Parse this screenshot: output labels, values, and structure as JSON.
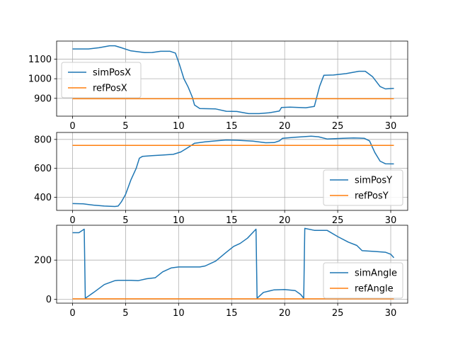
{
  "colors": {
    "sim": "#1f77b4",
    "ref": "#ff7f0e",
    "grid": "#b0b0b0",
    "axis": "#000000"
  },
  "chart_data": [
    {
      "type": "line",
      "xlim": [
        -1.5,
        31.6
      ],
      "ylim": [
        809,
        1192
      ],
      "x_ticks": [
        0,
        5,
        10,
        15,
        20,
        25,
        30
      ],
      "y_ticks": [
        900,
        1000,
        1100
      ],
      "grid": true,
      "legend_position": "upper-left",
      "series": [
        {
          "name": "simPosX",
          "color_key": "sim",
          "points": [
            [
              0,
              1152
            ],
            [
              1.5,
              1152
            ],
            [
              2.5,
              1158
            ],
            [
              3.5,
              1168
            ],
            [
              4.0,
              1168
            ],
            [
              4.6,
              1158
            ],
            [
              5.5,
              1142
            ],
            [
              6.8,
              1133
            ],
            [
              7.5,
              1134
            ],
            [
              8.3,
              1140
            ],
            [
              9.2,
              1140
            ],
            [
              9.7,
              1131
            ],
            [
              10.1,
              1070
            ],
            [
              10.5,
              1000
            ],
            [
              10.9,
              958
            ],
            [
              11.3,
              905
            ],
            [
              11.5,
              866
            ],
            [
              12.0,
              848
            ],
            [
              13.5,
              846
            ],
            [
              14.5,
              834
            ],
            [
              15.5,
              833
            ],
            [
              16.6,
              822
            ],
            [
              17.6,
              822
            ],
            [
              18.5,
              826
            ],
            [
              19.5,
              835
            ],
            [
              19.7,
              853
            ],
            [
              20.5,
              855
            ],
            [
              22.0,
              852
            ],
            [
              22.8,
              859
            ],
            [
              23.3,
              962
            ],
            [
              23.7,
              1018
            ],
            [
              24.6,
              1019
            ],
            [
              25.8,
              1026
            ],
            [
              27.0,
              1038
            ],
            [
              27.6,
              1038
            ],
            [
              28.3,
              1010
            ],
            [
              29.0,
              960
            ],
            [
              29.5,
              948
            ],
            [
              30.3,
              951
            ]
          ]
        },
        {
          "name": "refPosX",
          "color_key": "ref",
          "points": [
            [
              0,
              898
            ],
            [
              30.3,
              898
            ]
          ]
        }
      ]
    },
    {
      "type": "line",
      "xlim": [
        -1.5,
        31.6
      ],
      "ylim": [
        310,
        848
      ],
      "x_ticks": [
        0,
        5,
        10,
        15,
        20,
        25,
        30
      ],
      "y_ticks": [
        400,
        600,
        800
      ],
      "grid": true,
      "legend_position": "lower-right",
      "series": [
        {
          "name": "simPosY",
          "color_key": "sim",
          "points": [
            [
              0,
              357
            ],
            [
              1.0,
              355
            ],
            [
              2.0,
              346
            ],
            [
              3.0,
              340
            ],
            [
              4.0,
              337
            ],
            [
              4.3,
              340
            ],
            [
              4.6,
              368
            ],
            [
              5.0,
              420
            ],
            [
              5.5,
              520
            ],
            [
              6.0,
              600
            ],
            [
              6.3,
              670
            ],
            [
              6.6,
              683
            ],
            [
              7.5,
              688
            ],
            [
              8.5,
              692
            ],
            [
              9.5,
              697
            ],
            [
              10.2,
              713
            ],
            [
              10.8,
              740
            ],
            [
              11.5,
              773
            ],
            [
              12.5,
              783
            ],
            [
              13.5,
              790
            ],
            [
              14.5,
              796
            ],
            [
              15.5,
              794
            ],
            [
              17.0,
              788
            ],
            [
              18.2,
              777
            ],
            [
              19.0,
              778
            ],
            [
              19.5,
              790
            ],
            [
              19.8,
              808
            ],
            [
              21.0,
              815
            ],
            [
              22.5,
              822
            ],
            [
              23.2,
              818
            ],
            [
              24.0,
              803
            ],
            [
              25.5,
              808
            ],
            [
              26.5,
              810
            ],
            [
              27.5,
              808
            ],
            [
              28.0,
              790
            ],
            [
              28.5,
              710
            ],
            [
              29.0,
              650
            ],
            [
              29.5,
              632
            ],
            [
              30.3,
              631
            ]
          ]
        },
        {
          "name": "refPosY",
          "color_key": "ref",
          "points": [
            [
              0,
              759
            ],
            [
              30.3,
              759
            ]
          ]
        }
      ]
    },
    {
      "type": "line",
      "xlim": [
        -1.5,
        31.6
      ],
      "ylim": [
        -20,
        378
      ],
      "x_ticks": [
        0,
        5,
        10,
        15,
        20,
        25,
        30
      ],
      "y_ticks": [
        0,
        200
      ],
      "grid": true,
      "legend_position": "lower-right",
      "series": [
        {
          "name": "simAngle",
          "color_key": "sim",
          "points": [
            [
              0,
              340
            ],
            [
              0.6,
              340
            ],
            [
              1.1,
              358
            ],
            [
              1.2,
              5
            ],
            [
              2.0,
              35
            ],
            [
              3.0,
              75
            ],
            [
              4.0,
              95
            ],
            [
              4.3,
              97
            ],
            [
              5.5,
              97
            ],
            [
              6.2,
              95
            ],
            [
              7.0,
              105
            ],
            [
              7.8,
              110
            ],
            [
              8.5,
              140
            ],
            [
              9.3,
              160
            ],
            [
              10.0,
              165
            ],
            [
              12.0,
              165
            ],
            [
              12.5,
              170
            ],
            [
              13.5,
              195
            ],
            [
              14.5,
              240
            ],
            [
              15.2,
              270
            ],
            [
              15.8,
              285
            ],
            [
              16.5,
              312
            ],
            [
              17.3,
              358
            ],
            [
              17.4,
              5
            ],
            [
              18.0,
              35
            ],
            [
              19.0,
              48
            ],
            [
              20.0,
              50
            ],
            [
              21.0,
              44
            ],
            [
              21.5,
              25
            ],
            [
              21.8,
              5
            ],
            [
              21.9,
              362
            ],
            [
              22.8,
              352
            ],
            [
              24.0,
              352
            ],
            [
              25.0,
              320
            ],
            [
              26.0,
              292
            ],
            [
              26.8,
              275
            ],
            [
              27.3,
              248
            ],
            [
              28.5,
              244
            ],
            [
              29.5,
              240
            ],
            [
              30.0,
              230
            ],
            [
              30.3,
              212
            ]
          ]
        },
        {
          "name": "refAngle",
          "color_key": "ref",
          "points": [
            [
              0,
              2
            ],
            [
              30.3,
              2
            ]
          ]
        }
      ]
    }
  ]
}
